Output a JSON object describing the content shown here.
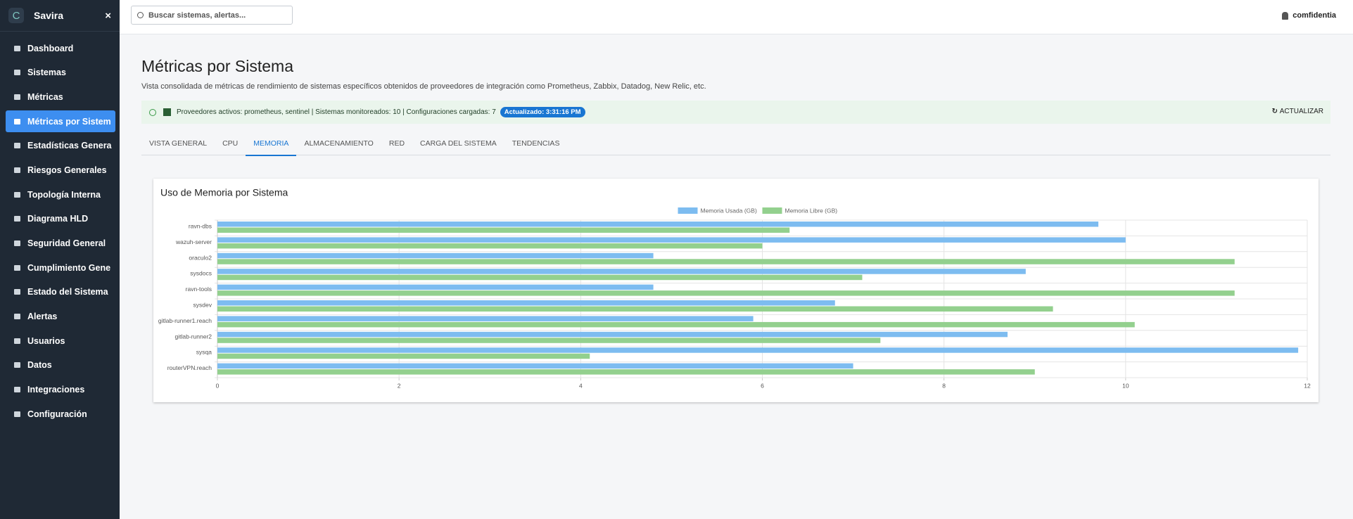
{
  "sidebar": {
    "brand": "Savira",
    "nav": [
      "Dashboard",
      "Sistemas",
      "Métricas",
      "Métricas por Sistem",
      "Estadísticas Genera",
      "Riesgos Generales",
      "Topología Interna",
      "Diagrama HLD",
      "Seguridad General",
      "Cumplimiento Gene",
      "Estado del Sistema",
      "Alertas",
      "Usuarios",
      "Datos",
      "Integraciones",
      "Configuración"
    ],
    "active": 3
  },
  "topbar": {
    "search_placeholder": "Buscar sistemas, alertas...",
    "user": "comfidentia"
  },
  "header": {
    "title": "Métricas por Sistema",
    "subtitle": "Vista consolidada de métricas de rendimiento de sistemas específicos obtenidos de proveedores de integración como Prometheus, Zabbix, Datadog, New Relic, etc."
  },
  "status": {
    "text": "Proveedores activos: prometheus, sentinel | Sistemas monitoreados: 10 | Configuraciones cargadas: 7",
    "badge": "Actualizado: 3:31:16 PM",
    "refresh": "ACTUALIZAR"
  },
  "tabs": {
    "items": [
      "VISTA GENERAL",
      "CPU",
      "MEMORIA",
      "ALMACENAMIENTO",
      "RED",
      "CARGA DEL SISTEMA",
      "TENDENCIAS"
    ],
    "active": 2
  },
  "chart_data": {
    "type": "hbar",
    "title": "Uso de Memoria por Sistema",
    "categories": [
      "ravn-dbs",
      "wazuh-server",
      "oraculo2",
      "sysdocs",
      "ravn-tools",
      "sysdev",
      "gitlab-runner1.reach",
      "gitlab-runner2",
      "sysqa",
      "routerVPN.reach"
    ],
    "series": [
      {
        "name": "Memoria Usada (GB)",
        "color": "#7dbcf0",
        "values": [
          9.7,
          10.0,
          4.8,
          8.9,
          4.8,
          6.8,
          5.9,
          8.7,
          11.9,
          7.0
        ]
      },
      {
        "name": "Memoria Libre (GB)",
        "color": "#93d08e",
        "values": [
          6.3,
          6.0,
          11.2,
          7.1,
          11.2,
          9.2,
          10.1,
          7.3,
          4.1,
          9.0
        ]
      }
    ],
    "xlim": [
      0,
      12
    ],
    "xticks": [
      0,
      2,
      4,
      6,
      8,
      10,
      12
    ],
    "grid": true,
    "legend": "top"
  }
}
